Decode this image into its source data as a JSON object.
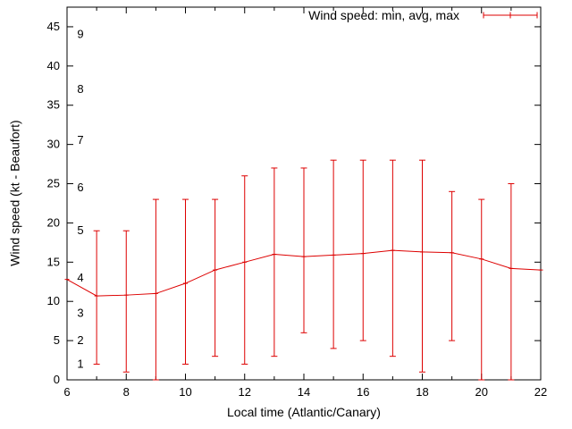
{
  "chart_data": {
    "type": "line",
    "legend": "Wind speed: min, avg, max",
    "xlabel": "Local time (Atlantic/Canary)",
    "ylabel": "Wind speed (kt - Beaufort)",
    "xlim": [
      6,
      22
    ],
    "ylim": [
      0,
      47.5
    ],
    "xticks": [
      6,
      8,
      10,
      12,
      14,
      16,
      18,
      20,
      22
    ],
    "yticks": [
      0,
      5,
      10,
      15,
      20,
      25,
      30,
      35,
      40,
      45
    ],
    "beaufort_labels": [
      {
        "label": "1",
        "kt": 2
      },
      {
        "label": "2",
        "kt": 5
      },
      {
        "label": "3",
        "kt": 8.5
      },
      {
        "label": "4",
        "kt": 13
      },
      {
        "label": "5",
        "kt": 19
      },
      {
        "label": "6",
        "kt": 24.5
      },
      {
        "label": "7",
        "kt": 30.5
      },
      {
        "label": "8",
        "kt": 37
      },
      {
        "label": "9",
        "kt": 44
      }
    ],
    "line_color": "#dd0000",
    "grid": false,
    "legend_position": "top-right-inside",
    "points": [
      {
        "x": 6,
        "avg": 12.8,
        "min": null,
        "max": null
      },
      {
        "x": 7,
        "avg": 10.7,
        "min": 2,
        "max": 19
      },
      {
        "x": 8,
        "avg": 10.8,
        "min": 1,
        "max": 19
      },
      {
        "x": 9,
        "avg": 11.0,
        "min": 0,
        "max": 23
      },
      {
        "x": 10,
        "avg": 12.3,
        "min": 2,
        "max": 23
      },
      {
        "x": 11,
        "avg": 14.0,
        "min": 3,
        "max": 23
      },
      {
        "x": 12,
        "avg": 15.0,
        "min": 2,
        "max": 26
      },
      {
        "x": 13,
        "avg": 16.0,
        "min": 3,
        "max": 27
      },
      {
        "x": 14,
        "avg": 15.7,
        "min": 6,
        "max": 27
      },
      {
        "x": 15,
        "avg": 15.9,
        "min": 4,
        "max": 28
      },
      {
        "x": 16,
        "avg": 16.1,
        "min": 5,
        "max": 28
      },
      {
        "x": 17,
        "avg": 16.5,
        "min": 3,
        "max": 28
      },
      {
        "x": 18,
        "avg": 16.3,
        "min": 1,
        "max": 28
      },
      {
        "x": 19,
        "avg": 16.2,
        "min": 5,
        "max": 24
      },
      {
        "x": 20,
        "avg": 15.4,
        "min": 0,
        "max": 23
      },
      {
        "x": 21,
        "avg": 14.2,
        "min": 0,
        "max": 25
      },
      {
        "x": 22,
        "avg": 14.0,
        "min": null,
        "max": null
      }
    ]
  }
}
